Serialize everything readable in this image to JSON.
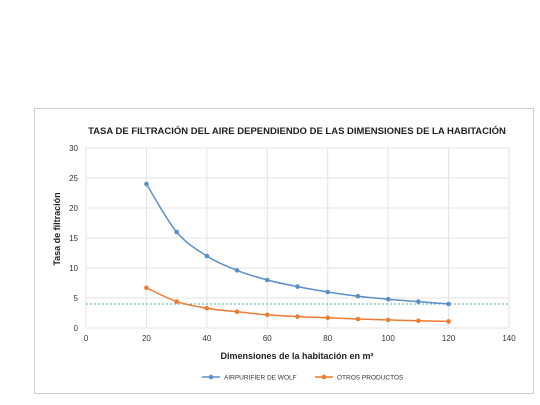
{
  "chart_data": {
    "type": "line",
    "title": "TASA DE FILTRACIÓN DEL AIRE DEPENDIENDO DE LAS DIMENSIONES DE LA HABITACIÓN",
    "xlabel": "Dimensiones de la habitación en m²",
    "ylabel": "Tasa de filtración",
    "xlim": [
      0,
      140
    ],
    "ylim": [
      0,
      30
    ],
    "xticks": [
      "0",
      "20",
      "40",
      "60",
      "80",
      "100",
      "120",
      "140"
    ],
    "yticks": [
      "0",
      "5",
      "10",
      "15",
      "20",
      "25",
      "30"
    ],
    "grid": true,
    "legend_position": "bottom",
    "reference_line": {
      "y": 4,
      "style": "dashed",
      "color": "#5ba7a7"
    },
    "series": [
      {
        "name": "AIRPURIFIER DE WOLF",
        "color": "#5b8fc7",
        "x": [
          20,
          30,
          40,
          50,
          60,
          70,
          80,
          90,
          100,
          110,
          120
        ],
        "values": [
          24,
          16,
          12,
          9.6,
          8,
          6.9,
          6,
          5.3,
          4.8,
          4.4,
          4
        ]
      },
      {
        "name": "OTROS PRODUCTOS",
        "color": "#ed7d31",
        "x": [
          20,
          30,
          40,
          50,
          60,
          70,
          80,
          90,
          100,
          110,
          120
        ],
        "values": [
          6.7,
          4.4,
          3.3,
          2.7,
          2.2,
          1.9,
          1.7,
          1.5,
          1.35,
          1.2,
          1.1
        ]
      }
    ]
  }
}
